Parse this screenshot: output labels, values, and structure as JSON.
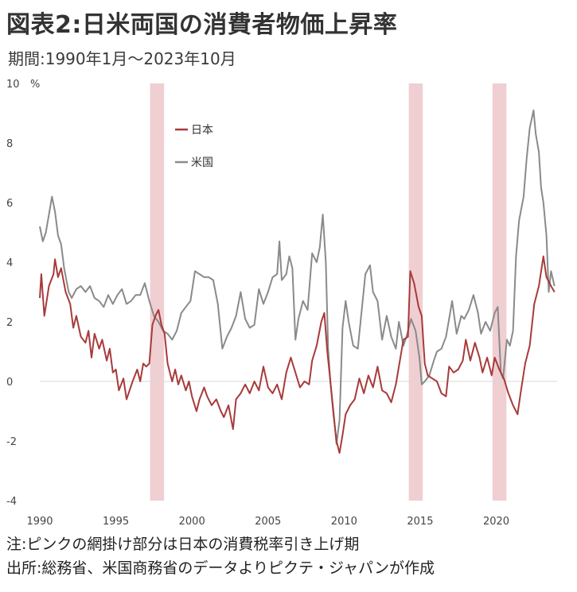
{
  "title": "図表2:日米両国の消費者物価上昇率",
  "subtitle": "期間:1990年1月〜2023年10月",
  "notes": {
    "line1": "注:ピンクの網掛け部分は日本の消費税率引き上げ期",
    "line2": "出所:総務省、米国商務省のデータよりピクテ・ジャパンが作成"
  },
  "chart_data": {
    "type": "line",
    "ylabel": "%",
    "ylim": [
      -4,
      10
    ],
    "xlim": [
      1990.0,
      2024.0
    ],
    "y_ticks": [
      -4,
      -2,
      0,
      2,
      4,
      6,
      8,
      10
    ],
    "x_ticks": [
      1990,
      1995,
      2000,
      2005,
      2010,
      2015,
      2020
    ],
    "grid": false,
    "legend": "upper-left",
    "colors": {
      "japan": "#a83a3a",
      "us": "#8a8a8a",
      "shade": "#efcfd2",
      "zero_line": "#d9d9d9",
      "neg_tick": "#c0392b"
    },
    "shaded_periods": [
      [
        1997.25,
        1998.17
      ],
      [
        2014.25,
        2015.17
      ],
      [
        2019.75,
        2020.67
      ]
    ],
    "series": [
      {
        "name": "日本",
        "points": [
          [
            1990.0,
            2.8
          ],
          [
            1990.1,
            3.6
          ],
          [
            1990.3,
            2.2
          ],
          [
            1990.6,
            3.2
          ],
          [
            1990.9,
            3.6
          ],
          [
            1991.0,
            4.1
          ],
          [
            1991.2,
            3.5
          ],
          [
            1991.4,
            3.8
          ],
          [
            1991.7,
            3.0
          ],
          [
            1992.0,
            2.6
          ],
          [
            1992.2,
            1.8
          ],
          [
            1992.4,
            2.2
          ],
          [
            1992.7,
            1.5
          ],
          [
            1993.0,
            1.3
          ],
          [
            1993.2,
            1.7
          ],
          [
            1993.4,
            0.8
          ],
          [
            1993.6,
            1.6
          ],
          [
            1993.9,
            1.1
          ],
          [
            1994.1,
            1.4
          ],
          [
            1994.4,
            0.7
          ],
          [
            1994.6,
            1.1
          ],
          [
            1994.8,
            0.3
          ],
          [
            1995.0,
            0.4
          ],
          [
            1995.2,
            -0.3
          ],
          [
            1995.5,
            0.1
          ],
          [
            1995.7,
            -0.6
          ],
          [
            1995.9,
            -0.3
          ],
          [
            1996.1,
            0.0
          ],
          [
            1996.4,
            0.4
          ],
          [
            1996.6,
            0.0
          ],
          [
            1996.8,
            0.6
          ],
          [
            1997.0,
            0.5
          ],
          [
            1997.2,
            0.6
          ],
          [
            1997.4,
            1.9
          ],
          [
            1997.6,
            2.2
          ],
          [
            1997.8,
            2.4
          ],
          [
            1998.0,
            1.9
          ],
          [
            1998.2,
            1.6
          ],
          [
            1998.4,
            0.6
          ],
          [
            1998.7,
            0.0
          ],
          [
            1998.9,
            0.4
          ],
          [
            1999.1,
            -0.1
          ],
          [
            1999.3,
            0.2
          ],
          [
            1999.6,
            -0.3
          ],
          [
            1999.8,
            0.0
          ],
          [
            2000.0,
            -0.5
          ],
          [
            2000.3,
            -1.0
          ],
          [
            2000.5,
            -0.6
          ],
          [
            2000.8,
            -0.2
          ],
          [
            2001.0,
            -0.5
          ],
          [
            2001.3,
            -0.8
          ],
          [
            2001.6,
            -0.6
          ],
          [
            2001.9,
            -1.0
          ],
          [
            2002.1,
            -1.2
          ],
          [
            2002.4,
            -0.8
          ],
          [
            2002.7,
            -1.6
          ],
          [
            2002.9,
            -0.6
          ],
          [
            2003.2,
            -0.4
          ],
          [
            2003.5,
            -0.1
          ],
          [
            2003.8,
            -0.4
          ],
          [
            2004.1,
            0.0
          ],
          [
            2004.4,
            -0.3
          ],
          [
            2004.7,
            0.5
          ],
          [
            2005.0,
            -0.2
          ],
          [
            2005.3,
            -0.4
          ],
          [
            2005.6,
            -0.1
          ],
          [
            2005.9,
            -0.6
          ],
          [
            2006.2,
            0.3
          ],
          [
            2006.5,
            0.8
          ],
          [
            2006.8,
            0.3
          ],
          [
            2007.1,
            -0.2
          ],
          [
            2007.4,
            0.0
          ],
          [
            2007.7,
            -0.1
          ],
          [
            2007.9,
            0.7
          ],
          [
            2008.2,
            1.2
          ],
          [
            2008.5,
            2.0
          ],
          [
            2008.7,
            2.3
          ],
          [
            2008.9,
            1.0
          ],
          [
            2009.1,
            0.0
          ],
          [
            2009.3,
            -1.1
          ],
          [
            2009.5,
            -2.0
          ],
          [
            2009.7,
            -2.4
          ],
          [
            2009.9,
            -1.8
          ],
          [
            2010.1,
            -1.1
          ],
          [
            2010.4,
            -0.8
          ],
          [
            2010.7,
            -0.6
          ],
          [
            2011.0,
            0.1
          ],
          [
            2011.3,
            -0.4
          ],
          [
            2011.6,
            0.2
          ],
          [
            2011.9,
            -0.2
          ],
          [
            2012.2,
            0.5
          ],
          [
            2012.5,
            -0.3
          ],
          [
            2012.8,
            -0.4
          ],
          [
            2013.1,
            -0.7
          ],
          [
            2013.4,
            -0.1
          ],
          [
            2013.7,
            0.8
          ],
          [
            2013.9,
            1.4
          ],
          [
            2014.2,
            1.5
          ],
          [
            2014.35,
            3.7
          ],
          [
            2014.6,
            3.3
          ],
          [
            2014.9,
            2.5
          ],
          [
            2015.1,
            2.2
          ],
          [
            2015.3,
            0.6
          ],
          [
            2015.5,
            0.2
          ],
          [
            2015.8,
            0.1
          ],
          [
            2016.1,
            0.0
          ],
          [
            2016.4,
            -0.4
          ],
          [
            2016.7,
            -0.5
          ],
          [
            2016.9,
            0.5
          ],
          [
            2017.2,
            0.3
          ],
          [
            2017.5,
            0.4
          ],
          [
            2017.8,
            0.7
          ],
          [
            2018.0,
            1.4
          ],
          [
            2018.3,
            0.7
          ],
          [
            2018.6,
            1.3
          ],
          [
            2018.9,
            0.8
          ],
          [
            2019.1,
            0.3
          ],
          [
            2019.4,
            0.8
          ],
          [
            2019.7,
            0.2
          ],
          [
            2019.9,
            0.8
          ],
          [
            2020.2,
            0.4
          ],
          [
            2020.5,
            0.1
          ],
          [
            2020.8,
            -0.4
          ],
          [
            2021.1,
            -0.8
          ],
          [
            2021.4,
            -1.1
          ],
          [
            2021.6,
            -0.4
          ],
          [
            2021.9,
            0.6
          ],
          [
            2022.2,
            1.2
          ],
          [
            2022.5,
            2.6
          ],
          [
            2022.8,
            3.2
          ],
          [
            2023.1,
            4.2
          ],
          [
            2023.3,
            3.5
          ],
          [
            2023.6,
            3.2
          ],
          [
            2023.83,
            3.0
          ]
        ]
      },
      {
        "name": "米国",
        "points": [
          [
            1990.0,
            5.2
          ],
          [
            1990.2,
            4.7
          ],
          [
            1990.4,
            5.0
          ],
          [
            1990.6,
            5.6
          ],
          [
            1990.8,
            6.2
          ],
          [
            1991.0,
            5.7
          ],
          [
            1991.2,
            4.9
          ],
          [
            1991.4,
            4.6
          ],
          [
            1991.6,
            3.8
          ],
          [
            1991.9,
            3.0
          ],
          [
            1992.1,
            2.8
          ],
          [
            1992.4,
            3.1
          ],
          [
            1992.7,
            3.2
          ],
          [
            1993.0,
            3.0
          ],
          [
            1993.3,
            3.2
          ],
          [
            1993.6,
            2.8
          ],
          [
            1993.9,
            2.7
          ],
          [
            1994.2,
            2.5
          ],
          [
            1994.5,
            2.9
          ],
          [
            1994.8,
            2.6
          ],
          [
            1995.1,
            2.9
          ],
          [
            1995.4,
            3.1
          ],
          [
            1995.7,
            2.6
          ],
          [
            1996.0,
            2.7
          ],
          [
            1996.3,
            2.9
          ],
          [
            1996.6,
            2.9
          ],
          [
            1996.9,
            3.3
          ],
          [
            1997.2,
            2.7
          ],
          [
            1997.5,
            2.2
          ],
          [
            1997.8,
            2.0
          ],
          [
            1998.1,
            1.7
          ],
          [
            1998.4,
            1.6
          ],
          [
            1998.7,
            1.4
          ],
          [
            1999.0,
            1.7
          ],
          [
            1999.3,
            2.3
          ],
          [
            1999.6,
            2.5
          ],
          [
            1999.9,
            2.7
          ],
          [
            2000.2,
            3.7
          ],
          [
            2000.5,
            3.6
          ],
          [
            2000.8,
            3.5
          ],
          [
            2001.1,
            3.5
          ],
          [
            2001.4,
            3.4
          ],
          [
            2001.7,
            2.6
          ],
          [
            2002.0,
            1.1
          ],
          [
            2002.3,
            1.5
          ],
          [
            2002.6,
            1.8
          ],
          [
            2002.9,
            2.2
          ],
          [
            2003.2,
            3.0
          ],
          [
            2003.5,
            2.1
          ],
          [
            2003.8,
            1.8
          ],
          [
            2004.1,
            1.9
          ],
          [
            2004.4,
            3.1
          ],
          [
            2004.7,
            2.6
          ],
          [
            2005.0,
            3.0
          ],
          [
            2005.3,
            3.5
          ],
          [
            2005.6,
            3.6
          ],
          [
            2005.75,
            4.7
          ],
          [
            2005.9,
            3.4
          ],
          [
            2006.2,
            3.6
          ],
          [
            2006.4,
            4.2
          ],
          [
            2006.6,
            3.8
          ],
          [
            2006.8,
            1.4
          ],
          [
            2007.0,
            2.1
          ],
          [
            2007.3,
            2.7
          ],
          [
            2007.6,
            2.4
          ],
          [
            2007.9,
            4.3
          ],
          [
            2008.2,
            4.0
          ],
          [
            2008.4,
            4.5
          ],
          [
            2008.6,
            5.6
          ],
          [
            2008.8,
            4.0
          ],
          [
            2008.95,
            1.1
          ],
          [
            2009.1,
            0.0
          ],
          [
            2009.3,
            -1.0
          ],
          [
            2009.5,
            -2.1
          ],
          [
            2009.7,
            -1.3
          ],
          [
            2009.9,
            1.8
          ],
          [
            2010.1,
            2.7
          ],
          [
            2010.3,
            2.0
          ],
          [
            2010.6,
            1.2
          ],
          [
            2010.9,
            1.1
          ],
          [
            2011.1,
            2.1
          ],
          [
            2011.4,
            3.6
          ],
          [
            2011.7,
            3.9
          ],
          [
            2011.9,
            3.0
          ],
          [
            2012.2,
            2.7
          ],
          [
            2012.5,
            1.4
          ],
          [
            2012.8,
            2.2
          ],
          [
            2013.1,
            1.5
          ],
          [
            2013.4,
            1.1
          ],
          [
            2013.6,
            2.0
          ],
          [
            2013.9,
            1.2
          ],
          [
            2014.1,
            1.5
          ],
          [
            2014.4,
            2.1
          ],
          [
            2014.7,
            1.7
          ],
          [
            2014.95,
            0.8
          ],
          [
            2015.1,
            -0.1
          ],
          [
            2015.3,
            0.0
          ],
          [
            2015.6,
            0.2
          ],
          [
            2015.9,
            0.7
          ],
          [
            2016.1,
            1.0
          ],
          [
            2016.4,
            1.1
          ],
          [
            2016.7,
            1.5
          ],
          [
            2016.9,
            2.1
          ],
          [
            2017.1,
            2.7
          ],
          [
            2017.4,
            1.6
          ],
          [
            2017.7,
            2.2
          ],
          [
            2017.9,
            2.1
          ],
          [
            2018.2,
            2.4
          ],
          [
            2018.5,
            2.9
          ],
          [
            2018.8,
            2.3
          ],
          [
            2019.0,
            1.6
          ],
          [
            2019.3,
            2.0
          ],
          [
            2019.6,
            1.7
          ],
          [
            2019.9,
            2.3
          ],
          [
            2020.1,
            2.5
          ],
          [
            2020.3,
            0.3
          ],
          [
            2020.45,
            0.1
          ],
          [
            2020.7,
            1.4
          ],
          [
            2020.9,
            1.2
          ],
          [
            2021.1,
            1.7
          ],
          [
            2021.3,
            4.2
          ],
          [
            2021.5,
            5.4
          ],
          [
            2021.8,
            6.2
          ],
          [
            2022.0,
            7.5
          ],
          [
            2022.2,
            8.5
          ],
          [
            2022.45,
            9.1
          ],
          [
            2022.6,
            8.3
          ],
          [
            2022.8,
            7.7
          ],
          [
            2022.95,
            6.5
          ],
          [
            2023.1,
            6.0
          ],
          [
            2023.3,
            4.9
          ],
          [
            2023.45,
            3.0
          ],
          [
            2023.6,
            3.7
          ],
          [
            2023.83,
            3.2
          ]
        ]
      }
    ]
  }
}
